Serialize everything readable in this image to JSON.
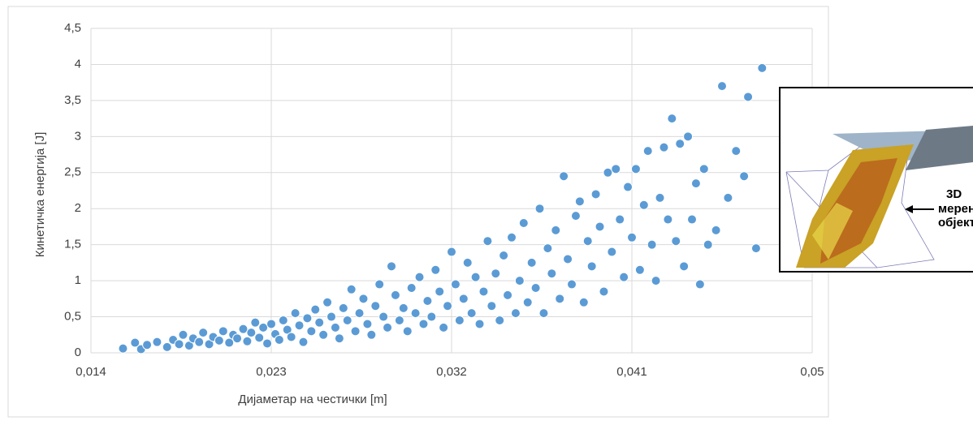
{
  "chart_data": {
    "type": "scatter",
    "x_label": "Дијаметар на честички [m]",
    "y_label": "Кинетичка енергија [J]",
    "color": "#5b9bd5",
    "grid": true,
    "xlim": [
      0.014,
      0.05
    ],
    "ylim": [
      0,
      4.5
    ],
    "xticks": [
      {
        "value": 0.014,
        "label": "0,014"
      },
      {
        "value": 0.023,
        "label": "0,023"
      },
      {
        "value": 0.032,
        "label": "0,032"
      },
      {
        "value": 0.041,
        "label": "0,041"
      },
      {
        "value": 0.05,
        "label": "0,05"
      }
    ],
    "yticks": [
      0,
      {
        "value": 0.5,
        "label": "0,5"
      },
      1,
      {
        "value": 1.5,
        "label": "1,5"
      },
      2,
      {
        "value": 2.5,
        "label": "2,5"
      },
      3,
      {
        "value": 3.5,
        "label": "3,5"
      },
      4,
      {
        "value": 4.5,
        "label": "4,5"
      }
    ],
    "x": [
      0.0156,
      0.0162,
      0.0165,
      0.0168,
      0.0173,
      0.0178,
      0.0181,
      0.0184,
      0.0186,
      0.0189,
      0.0191,
      0.0194,
      0.0196,
      0.0199,
      0.0201,
      0.0204,
      0.0206,
      0.0209,
      0.0211,
      0.0213,
      0.0216,
      0.0218,
      0.022,
      0.0222,
      0.0224,
      0.0226,
      0.0228,
      0.023,
      0.0232,
      0.0234,
      0.0236,
      0.0238,
      0.024,
      0.0242,
      0.0244,
      0.0246,
      0.0248,
      0.025,
      0.0252,
      0.0254,
      0.0256,
      0.0258,
      0.026,
      0.0262,
      0.0264,
      0.0266,
      0.0268,
      0.027,
      0.0272,
      0.0274,
      0.0276,
      0.0278,
      0.028,
      0.0282,
      0.0284,
      0.0286,
      0.0288,
      0.029,
      0.0292,
      0.0294,
      0.0296,
      0.0298,
      0.03,
      0.0302,
      0.0304,
      0.0306,
      0.0308,
      0.031,
      0.0312,
      0.0314,
      0.0316,
      0.0318,
      0.032,
      0.0322,
      0.0324,
      0.0326,
      0.0328,
      0.033,
      0.0332,
      0.0334,
      0.0336,
      0.0338,
      0.034,
      0.0342,
      0.0344,
      0.0346,
      0.0348,
      0.035,
      0.0352,
      0.0354,
      0.0356,
      0.0358,
      0.036,
      0.0362,
      0.0364,
      0.0366,
      0.0368,
      0.037,
      0.0372,
      0.0374,
      0.0376,
      0.0378,
      0.038,
      0.0382,
      0.0384,
      0.0386,
      0.0388,
      0.039,
      0.0392,
      0.0394,
      0.0396,
      0.0398,
      0.04,
      0.0402,
      0.0404,
      0.0406,
      0.0408,
      0.041,
      0.0412,
      0.0414,
      0.0416,
      0.0418,
      0.042,
      0.0422,
      0.0424,
      0.0426,
      0.0428,
      0.043,
      0.0432,
      0.0434,
      0.0436,
      0.0438,
      0.044,
      0.0442,
      0.0444,
      0.0446,
      0.0448,
      0.0452,
      0.0455,
      0.0458,
      0.0462,
      0.0466,
      0.0468,
      0.0472,
      0.0475
    ],
    "values": [
      0.06,
      0.14,
      0.05,
      0.11,
      0.15,
      0.08,
      0.18,
      0.12,
      0.25,
      0.1,
      0.2,
      0.15,
      0.28,
      0.12,
      0.22,
      0.17,
      0.3,
      0.14,
      0.25,
      0.2,
      0.33,
      0.16,
      0.28,
      0.42,
      0.21,
      0.35,
      0.13,
      0.4,
      0.26,
      0.18,
      0.45,
      0.32,
      0.22,
      0.55,
      0.38,
      0.15,
      0.48,
      0.3,
      0.6,
      0.42,
      0.25,
      0.7,
      0.5,
      0.35,
      0.2,
      0.62,
      0.45,
      0.88,
      0.3,
      0.55,
      0.75,
      0.4,
      0.25,
      0.65,
      0.95,
      0.5,
      0.35,
      1.2,
      0.8,
      0.45,
      0.62,
      0.3,
      0.9,
      0.55,
      1.05,
      0.4,
      0.72,
      0.5,
      1.15,
      0.85,
      0.35,
      0.65,
      1.4,
      0.95,
      0.45,
      0.75,
      1.25,
      0.55,
      1.05,
      0.4,
      0.85,
      1.55,
      0.65,
      1.1,
      0.45,
      1.35,
      0.8,
      1.6,
      0.55,
      1.0,
      1.8,
      0.7,
      1.25,
      0.9,
      2.0,
      0.55,
      1.45,
      1.1,
      1.7,
      0.75,
      2.45,
      1.3,
      0.95,
      1.9,
      2.1,
      0.7,
      1.55,
      1.2,
      2.2,
      1.75,
      0.85,
      2.5,
      1.4,
      2.55,
      1.85,
      1.05,
      2.3,
      1.6,
      2.55,
      1.15,
      2.05,
      2.8,
      1.5,
      1.0,
      2.15,
      2.85,
      1.85,
      3.25,
      1.55,
      2.9,
      1.2,
      3.0,
      1.85,
      2.35,
      0.95,
      2.55,
      1.5,
      1.7,
      3.7,
      2.15,
      2.8,
      2.45,
      3.55,
      1.45,
      3.95
    ]
  },
  "inset": {
    "labels": [
      "3D",
      "мерен",
      "објект"
    ]
  }
}
